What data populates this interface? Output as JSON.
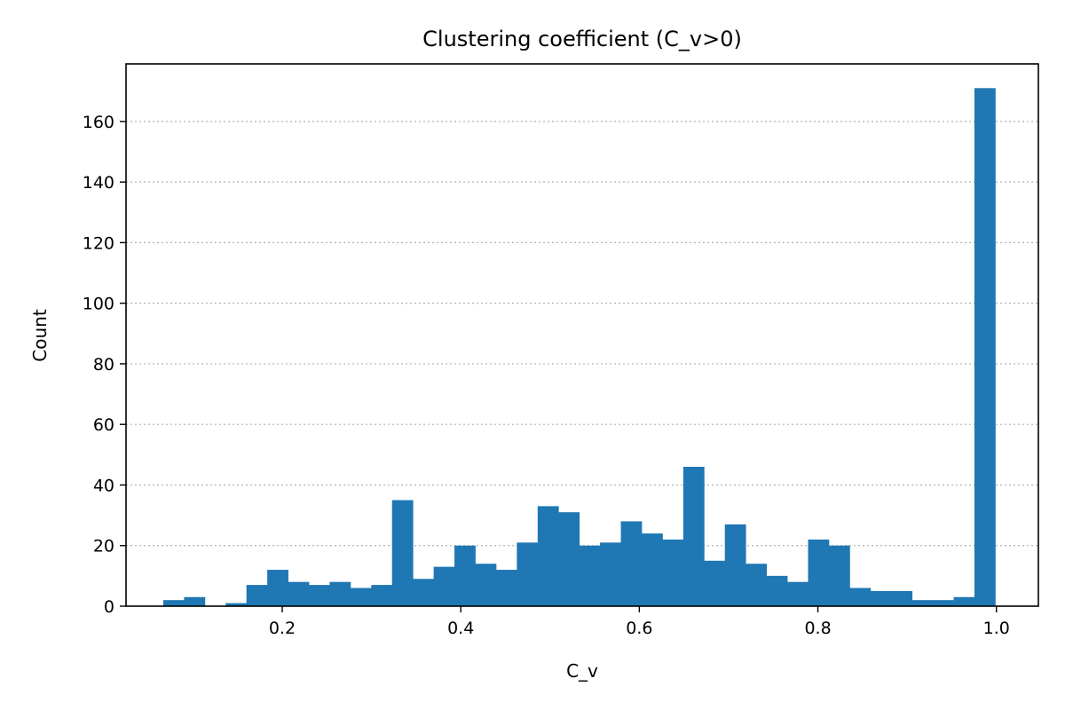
{
  "chart_data": {
    "type": "bar",
    "title": "Clustering coefficient (C_v>0)",
    "xlabel": "C_v",
    "ylabel": "Count",
    "xlim": [
      0.025,
      1.047
    ],
    "ylim": [
      0,
      179
    ],
    "grid": "y-dotted",
    "bar_color": "#1f77b4",
    "x_ticks": [
      0.2,
      0.4,
      0.6,
      0.8,
      1.0
    ],
    "x_tick_labels": [
      "0.2",
      "0.4",
      "0.6",
      "0.8",
      "1.0"
    ],
    "y_ticks": [
      0,
      20,
      40,
      60,
      80,
      100,
      120,
      140,
      160
    ],
    "y_tick_labels": [
      "0",
      "20",
      "40",
      "60",
      "80",
      "100",
      "120",
      "140",
      "160"
    ],
    "bin_start": 0.0667,
    "bin_width": 0.0233,
    "values": [
      2,
      3,
      0,
      1,
      7,
      12,
      8,
      7,
      8,
      6,
      7,
      35,
      9,
      13,
      20,
      14,
      12,
      21,
      33,
      31,
      20,
      21,
      28,
      24,
      22,
      46,
      15,
      27,
      14,
      10,
      8,
      22,
      20,
      6,
      5,
      5,
      2,
      2,
      3,
      171
    ]
  }
}
